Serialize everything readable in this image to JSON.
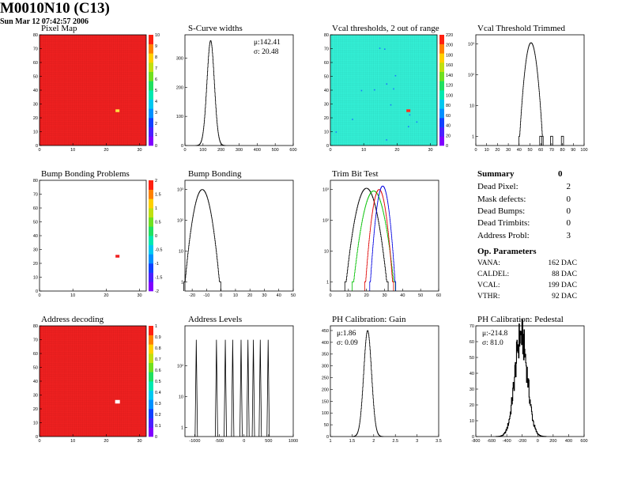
{
  "header": {
    "title": "M0010N10 (C13)",
    "timestamp": "Sun Mar 12 07:42:57 2006"
  },
  "summary": {
    "title": "Summary",
    "value": "0",
    "rows": [
      {
        "label": "Dead Pixel:",
        "value": "2"
      },
      {
        "label": "Mask defects:",
        "value": "0"
      },
      {
        "label": "Dead Bumps:",
        "value": "0"
      },
      {
        "label": "Dead Trimbits:",
        "value": "0"
      },
      {
        "label": "Address Probl:",
        "value": "3"
      }
    ],
    "op_title": "Op. Parameters",
    "op_rows": [
      {
        "label": "VANA:",
        "value": "162 DAC"
      },
      {
        "label": "CALDEL:",
        "value": "88 DAC"
      },
      {
        "label": "VCAL:",
        "value": "199 DAC"
      },
      {
        "label": "VTHR:",
        "value": "92 DAC"
      }
    ]
  },
  "chart_data": [
    {
      "id": "pixel-map",
      "type": "heatmap",
      "title": "Pixel Map",
      "xlim": [
        0,
        32
      ],
      "ylim": [
        0,
        80
      ],
      "x_ticks": [
        "0",
        "10",
        "20",
        "30"
      ],
      "y_ticks": [
        "0",
        "10",
        "20",
        "30",
        "40",
        "50",
        "60",
        "70",
        "80"
      ],
      "fill_color": "#f02020",
      "special_cells": [
        {
          "x": 38,
          "y": 25,
          "color": "#ffe040"
        }
      ],
      "colorbar_ticks": [
        "0",
        "1",
        "2",
        "3",
        "4",
        "5",
        "6",
        "7",
        "8",
        "9",
        "10"
      ]
    },
    {
      "id": "scurve-widths",
      "type": "histogram",
      "title": "S-Curve widths",
      "xlim": [
        0,
        600
      ],
      "ylim": [
        0,
        380
      ],
      "x_ticks": [
        "0",
        "100",
        "200",
        "300",
        "400",
        "500",
        "600"
      ],
      "y_ticks": [
        "0",
        "100",
        "200",
        "300"
      ],
      "stats": [
        "μ:142.41",
        "σ: 20.48"
      ],
      "series": [
        {
          "color": "#000",
          "mean": 142.41,
          "sigma": 20.48,
          "peak": 360
        }
      ]
    },
    {
      "id": "vcal-thresholds",
      "type": "heatmap",
      "title": "Vcal thresholds, 2 out of range",
      "xlim": [
        0,
        32
      ],
      "ylim": [
        0,
        80
      ],
      "x_ticks": [
        "0",
        "10",
        "20",
        "30"
      ],
      "y_ticks": [
        "0",
        "10",
        "20",
        "30",
        "40",
        "50",
        "60",
        "70",
        "80"
      ],
      "fill_color": "#33f0d6",
      "special_cells": [
        {
          "x": 38,
          "y": 25,
          "color": "#ff3020"
        }
      ],
      "colorbar_ticks": [
        "0",
        "20",
        "40",
        "60",
        "80",
        "100",
        "120",
        "140",
        "160",
        "180",
        "200",
        "220"
      ]
    },
    {
      "id": "vcal-threshold-trimmed",
      "type": "histogram",
      "log_y": true,
      "title": "Vcal Threshold Trimmed",
      "xlim": [
        0,
        100
      ],
      "ylim_log": [
        -0.3,
        3.3
      ],
      "x_ticks": [
        "0",
        "10",
        "20",
        "30",
        "40",
        "50",
        "60",
        "70",
        "80",
        "90",
        "100"
      ],
      "y_ticks": [
        {
          "label": "1",
          "exp": 0
        },
        {
          "label": "10",
          "exp": 1
        },
        {
          "label": "10²",
          "exp": 2
        },
        {
          "label": "10³",
          "exp": 3
        }
      ],
      "series": [
        {
          "color": "#000",
          "mean": 51,
          "sigma": 2.8,
          "peak": 1100,
          "extra": [
            [
              60,
              1
            ],
            [
              70,
              1
            ],
            [
              80,
              1
            ]
          ]
        }
      ]
    },
    {
      "id": "bump-bonding-problems",
      "type": "heatmap",
      "title": "Bump Bonding Problems",
      "xlim": [
        0,
        32
      ],
      "ylim": [
        0,
        80
      ],
      "x_ticks": [
        "0",
        "10",
        "20",
        "30"
      ],
      "y_ticks": [
        "0",
        "10",
        "20",
        "30",
        "40",
        "50",
        "60",
        "70",
        "80"
      ],
      "fill_color": "#ffffff",
      "special_cells": [
        {
          "x": 38,
          "y": 25,
          "color": "#f02020"
        }
      ],
      "colorbar_ticks": [
        "-2",
        "-1.5",
        "-1",
        "-0.5",
        "0",
        "0.5",
        "1",
        "1.5",
        "2"
      ]
    },
    {
      "id": "bump-bonding",
      "type": "histogram",
      "log_y": true,
      "title": "Bump Bonding",
      "xlim": [
        -25,
        50
      ],
      "ylim_log": [
        -0.3,
        3.3
      ],
      "x_ticks": [
        "-20",
        "-10",
        "0",
        "10",
        "20",
        "30",
        "40",
        "50"
      ],
      "y_ticks": [
        {
          "label": "1",
          "exp": 0
        },
        {
          "label": "10",
          "exp": 1
        },
        {
          "label": "10²",
          "exp": 2
        },
        {
          "label": "10³",
          "exp": 3
        }
      ],
      "series": [
        {
          "color": "#000",
          "mean": -13,
          "sigma": 3.2,
          "peak": 1000
        }
      ]
    },
    {
      "id": "trim-bit-test",
      "type": "histogram",
      "log_y": true,
      "title": "Trim Bit Test",
      "xlim": [
        0,
        60
      ],
      "ylim_log": [
        -0.3,
        3.3
      ],
      "x_ticks": [
        "0",
        "10",
        "20",
        "30",
        "40",
        "50",
        "60"
      ],
      "y_ticks": [
        {
          "label": "1",
          "exp": 0
        },
        {
          "label": "10",
          "exp": 1
        },
        {
          "label": "10²",
          "exp": 2
        },
        {
          "label": "10³",
          "exp": 3
        }
      ],
      "series": [
        {
          "color": "#000",
          "mean": 20,
          "sigma": 3.0,
          "peak": 1100
        },
        {
          "color": "#00c000",
          "mean": 24,
          "sigma": 3.0,
          "peak": 900
        },
        {
          "color": "#e00000",
          "mean": 27,
          "sigma": 2.0,
          "peak": 1000
        },
        {
          "color": "#0000e0",
          "mean": 29,
          "sigma": 1.8,
          "peak": 1300
        }
      ]
    },
    {
      "id": "address-decoding",
      "type": "heatmap",
      "title": "Address decoding",
      "xlim": [
        0,
        32
      ],
      "ylim": [
        0,
        80
      ],
      "x_ticks": [
        "0",
        "10",
        "20",
        "30"
      ],
      "y_ticks": [
        "0",
        "10",
        "20",
        "30",
        "40",
        "50",
        "60",
        "70",
        "80"
      ],
      "fill_color": "#f02020",
      "special_cells": [
        {
          "x": 38,
          "y": 25,
          "color": "#ffffff"
        }
      ],
      "colorbar_ticks": [
        "0",
        "0.1",
        "0.2",
        "0.3",
        "0.4",
        "0.5",
        "0.6",
        "0.7",
        "0.8",
        "0.9",
        "1"
      ]
    },
    {
      "id": "address-levels",
      "type": "histogram",
      "log_y": true,
      "title": "Address Levels",
      "xlim": [
        -1200,
        1000
      ],
      "ylim_log": [
        -0.3,
        3.3
      ],
      "x_ticks": [
        "-1000",
        "-500",
        "0",
        "500",
        "1000"
      ],
      "y_ticks": [
        {
          "label": "1",
          "exp": 0
        },
        {
          "label": "10",
          "exp": 1
        },
        {
          "label": "10²",
          "exp": 2
        }
      ],
      "spikes": [
        -970,
        -560,
        -380,
        -230,
        -60,
        80,
        190,
        330,
        490
      ],
      "spike_height": 700
    },
    {
      "id": "ph-calibration-gain",
      "type": "histogram",
      "title": "PH Calibration: Gain",
      "xlim": [
        1,
        3.5
      ],
      "ylim": [
        0,
        470
      ],
      "x_ticks": [
        "1",
        "1.5",
        "2",
        "2.5",
        "3",
        "3.5"
      ],
      "y_ticks": [
        "0",
        "50",
        "100",
        "150",
        "200",
        "250",
        "300",
        "350",
        "400",
        "450"
      ],
      "stats": [
        "μ:1.86",
        "σ: 0.09"
      ],
      "series": [
        {
          "color": "#000",
          "mean": 1.86,
          "sigma": 0.09,
          "peak": 450
        }
      ]
    },
    {
      "id": "ph-calibration-pedestal",
      "type": "histogram",
      "title": "PH Calibration: Pedestal",
      "xlim": [
        -800,
        600
      ],
      "ylim": [
        0,
        70
      ],
      "x_ticks": [
        "-800",
        "-600",
        "-400",
        "-200",
        "0",
        "200",
        "400",
        "600"
      ],
      "y_ticks": [
        "0",
        "10",
        "20",
        "30",
        "40",
        "50",
        "60",
        "70"
      ],
      "stats": [
        "μ:-214.8",
        "σ: 81.0"
      ],
      "series": [
        {
          "color": "#000",
          "mean": -214.8,
          "sigma": 81.0,
          "peak": 64,
          "noisy": true
        }
      ]
    }
  ]
}
